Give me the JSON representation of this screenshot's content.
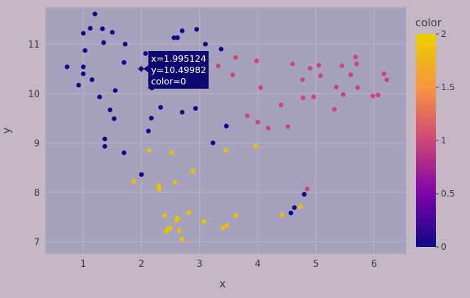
{
  "chart_data": {
    "type": "scatter",
    "xlabel": "x",
    "ylabel": "y",
    "xlim": [
      0.35,
      6.55
    ],
    "ylim": [
      6.75,
      11.75
    ],
    "xticks": [
      1,
      2,
      3,
      4,
      5,
      6
    ],
    "yticks": [
      7,
      8,
      9,
      10,
      11
    ],
    "grid": true,
    "colorbar": {
      "title": "color",
      "range": [
        0,
        2
      ],
      "ticks": [
        "0",
        "0.5",
        "1",
        "1.5",
        "2"
      ],
      "colors": [
        "#0d0887",
        "#7e03a8",
        "#cc4778",
        "#f89540",
        "#f0f921"
      ]
    },
    "series": [
      {
        "color_value": 0,
        "color": "#0d0887",
        "points": [
          [
            0.72,
            10.54
          ],
          [
            0.92,
            10.17
          ],
          [
            1.0,
            11.22
          ],
          [
            1.0,
            10.54
          ],
          [
            1.0,
            10.4
          ],
          [
            1.03,
            10.87
          ],
          [
            1.12,
            11.32
          ],
          [
            1.15,
            10.28
          ],
          [
            1.2,
            11.61
          ],
          [
            1.28,
            9.93
          ],
          [
            1.33,
            11.31
          ],
          [
            1.35,
            11.03
          ],
          [
            1.37,
            9.08
          ],
          [
            1.37,
            8.93
          ],
          [
            1.46,
            9.67
          ],
          [
            1.5,
            11.24
          ],
          [
            1.53,
            9.49
          ],
          [
            1.55,
            10.06
          ],
          [
            1.7,
            10.63
          ],
          [
            1.7,
            8.8
          ],
          [
            1.72,
            11.0
          ],
          [
            1.995,
            10.5
          ],
          [
            2.0,
            8.36
          ],
          [
            2.07,
            10.81
          ],
          [
            2.12,
            9.24
          ],
          [
            2.15,
            10.28
          ],
          [
            2.17,
            9.5
          ],
          [
            2.18,
            10.11
          ],
          [
            2.33,
            9.72
          ],
          [
            2.56,
            11.13
          ],
          [
            2.62,
            11.13
          ],
          [
            2.7,
            11.27
          ],
          [
            2.7,
            9.62
          ],
          [
            2.93,
            9.7
          ],
          [
            2.95,
            11.3
          ],
          [
            3.1,
            11.0
          ],
          [
            3.23,
            9.0
          ],
          [
            3.37,
            10.9
          ],
          [
            3.46,
            9.34
          ],
          [
            4.57,
            7.58
          ],
          [
            4.63,
            7.69
          ],
          [
            4.8,
            7.96
          ]
        ]
      },
      {
        "color_value": 1,
        "color": "#cc4778",
        "points": [
          [
            3.32,
            10.56
          ],
          [
            3.57,
            10.38
          ],
          [
            3.62,
            10.73
          ],
          [
            3.82,
            9.55
          ],
          [
            3.98,
            10.66
          ],
          [
            4.0,
            9.42
          ],
          [
            4.05,
            10.12
          ],
          [
            4.18,
            9.3
          ],
          [
            4.4,
            9.77
          ],
          [
            4.52,
            9.33
          ],
          [
            4.6,
            10.6
          ],
          [
            4.77,
            10.28
          ],
          [
            4.78,
            9.91
          ],
          [
            4.9,
            10.51
          ],
          [
            4.96,
            9.93
          ],
          [
            5.05,
            10.57
          ],
          [
            5.08,
            10.36
          ],
          [
            5.32,
            9.68
          ],
          [
            5.35,
            10.13
          ],
          [
            5.45,
            10.56
          ],
          [
            5.47,
            9.98
          ],
          [
            5.6,
            10.38
          ],
          [
            5.68,
            10.74
          ],
          [
            5.7,
            10.6
          ],
          [
            5.72,
            10.12
          ],
          [
            5.98,
            9.95
          ],
          [
            6.07,
            9.97
          ],
          [
            6.17,
            10.4
          ],
          [
            6.22,
            10.28
          ],
          [
            4.85,
            8.07
          ]
        ]
      },
      {
        "color_value": 2,
        "color": "#e2c300",
        "points": [
          [
            1.87,
            8.22
          ],
          [
            2.13,
            8.85
          ],
          [
            2.3,
            8.14
          ],
          [
            2.3,
            8.1
          ],
          [
            2.3,
            8.06
          ],
          [
            2.4,
            7.53
          ],
          [
            2.42,
            7.2
          ],
          [
            2.45,
            7.25
          ],
          [
            2.5,
            7.27
          ],
          [
            2.52,
            8.8
          ],
          [
            2.58,
            8.2
          ],
          [
            2.6,
            7.43
          ],
          [
            2.62,
            7.48
          ],
          [
            2.65,
            7.22
          ],
          [
            2.7,
            7.05
          ],
          [
            2.82,
            7.59
          ],
          [
            2.88,
            8.43
          ],
          [
            3.07,
            7.41
          ],
          [
            3.4,
            7.28
          ],
          [
            3.45,
            8.85
          ],
          [
            3.47,
            7.33
          ],
          [
            3.62,
            7.53
          ],
          [
            3.97,
            8.94
          ],
          [
            4.42,
            7.54
          ],
          [
            4.73,
            7.71
          ]
        ]
      }
    ],
    "hover": {
      "x_text": "x=1.995124",
      "y_text": "y=10.49982",
      "color_text": "color=0",
      "x": 1.995124,
      "y": 10.49982
    }
  }
}
